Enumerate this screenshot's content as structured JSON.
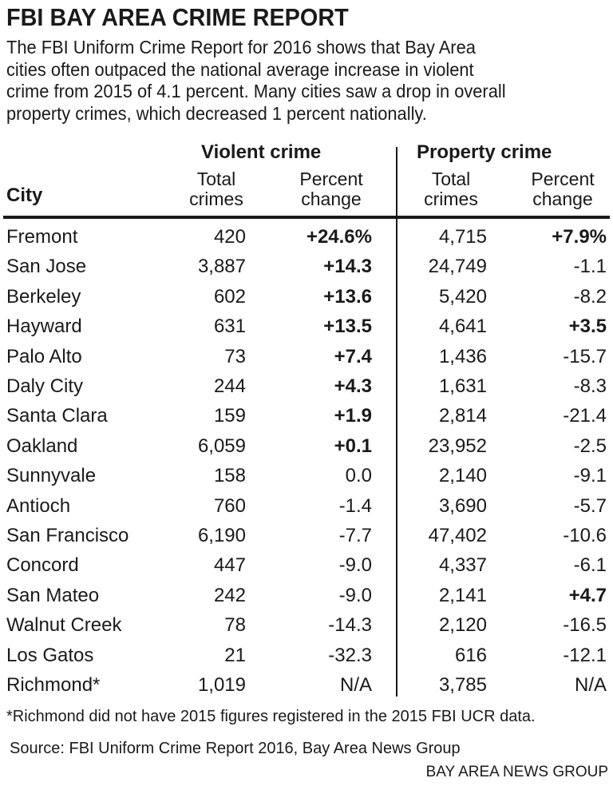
{
  "title": "FBI BAY AREA CRIME REPORT",
  "subtitle_lines": [
    "The FBI Uniform Crime Report for 2016 shows that Bay Area",
    "cities often outpaced the national average increase in violent",
    "crime from 2015 of 4.1 percent. Many cities saw a drop in overall",
    "property crimes, which decreased 1 percent nationally."
  ],
  "chart_data": {
    "type": "table",
    "groups": [
      "Violent crime",
      "Property crime"
    ],
    "columns": [
      "City",
      "Total crimes",
      "Percent change",
      "Total crimes",
      "Percent change"
    ],
    "column_lines": {
      "total": [
        "Total",
        "crimes"
      ],
      "pct": [
        "Percent",
        "change"
      ]
    },
    "rows": [
      [
        "Fremont",
        "420",
        "+24.6%",
        "4,715",
        "+7.9%"
      ],
      [
        "San Jose",
        "3,887",
        "+14.3",
        "24,749",
        "-1.1"
      ],
      [
        "Berkeley",
        "602",
        "+13.6",
        "5,420",
        "-8.2"
      ],
      [
        "Hayward",
        "631",
        "+13.5",
        "4,641",
        "+3.5"
      ],
      [
        "Palo Alto",
        "73",
        "+7.4",
        "1,436",
        "-15.7"
      ],
      [
        "Daly City",
        "244",
        "+4.3",
        "1,631",
        "-8.3"
      ],
      [
        "Santa Clara",
        "159",
        "+1.9",
        "2,814",
        "-21.4"
      ],
      [
        "Oakland",
        "6,059",
        "+0.1",
        "23,952",
        "-2.5"
      ],
      [
        "Sunnyvale",
        "158",
        "0.0",
        "2,140",
        "-9.1"
      ],
      [
        "Antioch",
        "760",
        "-1.4",
        "3,690",
        "-5.7"
      ],
      [
        "San Francisco",
        "6,190",
        "-7.7",
        "47,402",
        "-10.6"
      ],
      [
        "Concord",
        "447",
        "-9.0",
        "4,337",
        "-6.1"
      ],
      [
        "San Mateo",
        "242",
        "-9.0",
        "2,141",
        "+4.7"
      ],
      [
        "Walnut Creek",
        "78",
        "-14.3",
        "2,120",
        "-16.5"
      ],
      [
        "Los Gatos",
        "21",
        "-32.3",
        "616",
        "-12.1"
      ],
      [
        "Richmond*",
        "1,019",
        "N/A",
        "3,785",
        "N/A"
      ]
    ]
  },
  "footnote": "*Richmond did not have 2015 figures registered in the 2015 FBI UCR data.",
  "source": "Source: FBI Uniform Crime Report 2016, Bay Area News Group",
  "credit": "BAY AREA NEWS GROUP"
}
